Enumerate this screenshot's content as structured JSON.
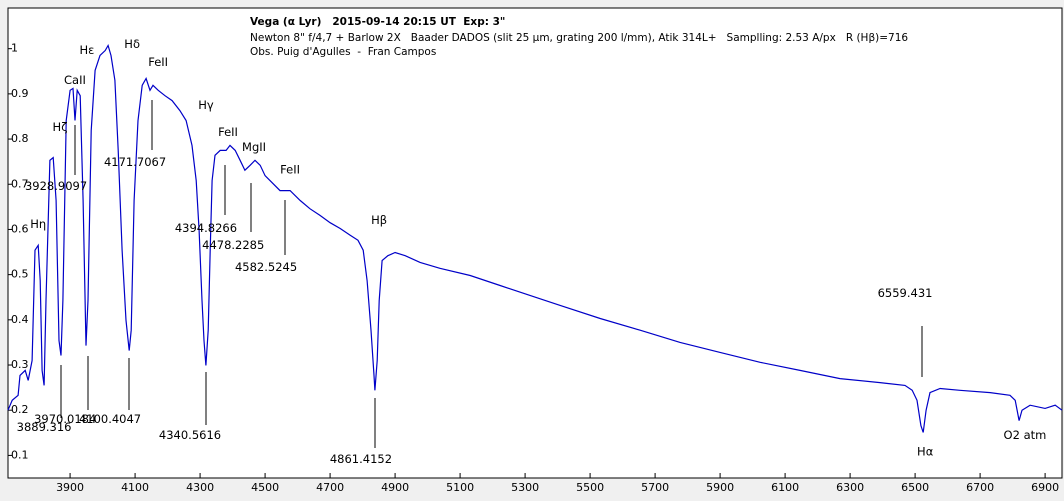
{
  "chart_data": {
    "type": "line",
    "title": "Vega (α Lyr)   2015-09-14 20:15 UT  Exp: 3\"",
    "subtitle": [
      "Newton 8\" f/4,7 + Barlow 2X   Baader DADOS (slit 25 µm, grating 200 l/mm), Atik 314L+   Samplling: 2.53 A/px   R (Hβ)=716",
      "Obs. Puig d'Agulles  -  Fran Campos"
    ],
    "color": "#0000c8",
    "xlim": [
      3709,
      6952
    ],
    "ylim": [
      0.05,
      1.09
    ],
    "xticks": [
      3900,
      4100,
      4300,
      4500,
      4700,
      4900,
      5100,
      5300,
      5500,
      5700,
      5900,
      6100,
      6300,
      6500,
      6700,
      6900
    ],
    "yticks": [
      0.1,
      0.2,
      0.3,
      0.4,
      0.5,
      0.6,
      0.7,
      0.8,
      0.9,
      1
    ],
    "x": [
      3709,
      3722,
      3740,
      3746,
      3762,
      3771,
      3783,
      3792,
      3802,
      3808,
      3814,
      3820,
      3826,
      3838,
      3848,
      3857,
      3866,
      3872,
      3878,
      3888,
      3900,
      3909,
      3915,
      3922,
      3931,
      3940,
      3949,
      3955,
      3965,
      3977,
      3992,
      4008,
      4017,
      4026,
      4038,
      4048,
      4060,
      4072,
      4082,
      4088,
      4097,
      4109,
      4122,
      4134,
      4146,
      4155,
      4171,
      4192,
      4214,
      4238,
      4257,
      4275,
      4288,
      4297,
      4306,
      4312,
      4318,
      4325,
      4331,
      4337,
      4346,
      4362,
      4380,
      4392,
      4408,
      4423,
      4438,
      4454,
      4469,
      4485,
      4500,
      4515,
      4546,
      4577,
      4608,
      4638,
      4669,
      4700,
      4731,
      4762,
      4786,
      4802,
      4814,
      4826,
      4835,
      4838,
      4845,
      4851,
      4860,
      4878,
      4900,
      4931,
      4977,
      5038,
      5131,
      5223,
      5315,
      5408,
      5531,
      5654,
      5777,
      5900,
      6023,
      6146,
      6269,
      6392,
      6469,
      6491,
      6506,
      6518,
      6525,
      6534,
      6546,
      6577,
      6638,
      6731,
      6792,
      6808,
      6820,
      6829,
      6854,
      6900,
      6931,
      6952
    ],
    "values": [
      0.2,
      0.222,
      0.233,
      0.277,
      0.288,
      0.266,
      0.31,
      0.554,
      0.565,
      0.487,
      0.288,
      0.255,
      0.443,
      0.753,
      0.759,
      0.664,
      0.354,
      0.321,
      0.443,
      0.841,
      0.908,
      0.912,
      0.841,
      0.908,
      0.896,
      0.664,
      0.343,
      0.443,
      0.819,
      0.952,
      0.985,
      0.996,
      1.007,
      0.985,
      0.93,
      0.775,
      0.554,
      0.399,
      0.332,
      0.377,
      0.664,
      0.841,
      0.919,
      0.934,
      0.908,
      0.919,
      0.908,
      0.896,
      0.885,
      0.863,
      0.841,
      0.786,
      0.708,
      0.598,
      0.443,
      0.354,
      0.299,
      0.377,
      0.554,
      0.708,
      0.764,
      0.775,
      0.775,
      0.786,
      0.775,
      0.753,
      0.731,
      0.742,
      0.753,
      0.742,
      0.719,
      0.708,
      0.686,
      0.686,
      0.664,
      0.646,
      0.631,
      0.615,
      0.602,
      0.587,
      0.576,
      0.554,
      0.487,
      0.377,
      0.277,
      0.244,
      0.31,
      0.443,
      0.531,
      0.542,
      0.549,
      0.542,
      0.527,
      0.514,
      0.498,
      0.476,
      0.454,
      0.432,
      0.403,
      0.377,
      0.35,
      0.328,
      0.306,
      0.288,
      0.27,
      0.261,
      0.255,
      0.244,
      0.222,
      0.166,
      0.151,
      0.2,
      0.239,
      0.248,
      0.244,
      0.239,
      0.233,
      0.222,
      0.177,
      0.2,
      0.211,
      0.204,
      0.211,
      0.2
    ],
    "annotations": [
      {
        "text": "Hη",
        "x": 3802,
        "y": 0.611
      },
      {
        "text": "3928.9097",
        "x": 3857,
        "y": 0.695
      },
      {
        "text": "Hζ",
        "x": 3869,
        "y": 0.826
      },
      {
        "text": "CaII",
        "x": 3915,
        "y": 0.93
      },
      {
        "text": "Hε",
        "x": 3952,
        "y": 0.996
      },
      {
        "text": "Hδ",
        "x": 4091,
        "y": 1.009
      },
      {
        "text": "FeII",
        "x": 4171,
        "y": 0.969
      },
      {
        "text": "4171.7067",
        "x": 4100,
        "y": 0.748
      },
      {
        "text": "Hγ",
        "x": 4318,
        "y": 0.874
      },
      {
        "text": "FeII",
        "x": 4386,
        "y": 0.815
      },
      {
        "text": "MgII",
        "x": 4466,
        "y": 0.781
      },
      {
        "text": "FeII",
        "x": 4577,
        "y": 0.731
      },
      {
        "text": "4394.8266",
        "x": 4318,
        "y": 0.602
      },
      {
        "text": "4478.2285",
        "x": 4402,
        "y": 0.565
      },
      {
        "text": "4582.5245",
        "x": 4503,
        "y": 0.516
      },
      {
        "text": "Hβ",
        "x": 4851,
        "y": 0.62
      },
      {
        "text": "6559.431",
        "x": 6469,
        "y": 0.458
      },
      {
        "text": "3970.0184",
        "x": 3885,
        "y": 0.18
      },
      {
        "text": "4100.4047",
        "x": 4023,
        "y": 0.18
      },
      {
        "text": "3889.316",
        "x": 3820,
        "y": 0.162
      },
      {
        "text": "4340.5616",
        "x": 4269,
        "y": 0.144
      },
      {
        "text": "4861.4152",
        "x": 4795,
        "y": 0.091
      },
      {
        "text": "Hα",
        "x": 6531,
        "y": 0.107
      },
      {
        "text": "O2 atm",
        "x": 6838,
        "y": 0.144
      }
    ]
  }
}
